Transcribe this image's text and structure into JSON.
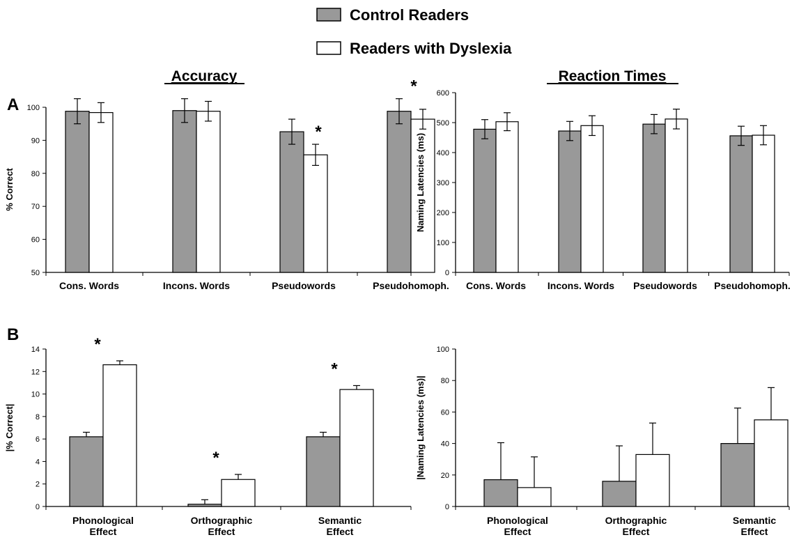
{
  "legend": {
    "items": [
      {
        "label": "Control Readers",
        "color": "#999999"
      },
      {
        "label": "Readers with Dyslexia",
        "color": "#ffffff"
      }
    ]
  },
  "sections": {
    "accuracy_title": "Accuracy",
    "rt_title": "Reaction Times"
  },
  "panel_labels": {
    "a": "A",
    "b": "B"
  },
  "colors": {
    "control": "#999999",
    "dyslexia": "#ffffff",
    "stroke": "#000000"
  },
  "chart_data": [
    {
      "id": "A-accuracy",
      "type": "bar",
      "ylabel": "% Correct",
      "ylim": [
        50,
        100
      ],
      "yticks": [
        50,
        60,
        70,
        80,
        90,
        100
      ],
      "categories": [
        "Cons. Words",
        "Incons. Words",
        "Pseudowords",
        "Pseudohomoph."
      ],
      "series": [
        {
          "name": "Control Readers",
          "values": [
            98.8,
            99.0,
            92.6,
            98.8
          ],
          "errors": [
            3.8,
            3.6,
            3.8,
            3.8
          ]
        },
        {
          "name": "Readers with Dyslexia",
          "values": [
            98.4,
            98.8,
            85.6,
            96.4
          ],
          "errors": [
            3.0,
            3.0,
            3.2,
            3.0
          ]
        }
      ],
      "annotations": [
        {
          "category": 2,
          "series": 1,
          "text": "*"
        },
        {
          "category": 3,
          "series": 0,
          "text": "*"
        }
      ],
      "grid": false
    },
    {
      "id": "A-rt",
      "type": "bar",
      "ylabel": "Naming Latencies (ms)",
      "ylim": [
        0,
        600
      ],
      "yticks": [
        0,
        100,
        200,
        300,
        400,
        500,
        600
      ],
      "categories": [
        "Cons. Words",
        "Incons. Words",
        "Pseudowords",
        "Pseudohomoph."
      ],
      "series": [
        {
          "name": "Control Readers",
          "values": [
            478,
            472,
            495,
            456
          ],
          "errors": [
            32,
            32,
            32,
            32
          ]
        },
        {
          "name": "Readers with Dyslexia",
          "values": [
            503,
            490,
            512,
            458
          ],
          "errors": [
            30,
            33,
            33,
            32
          ]
        }
      ],
      "annotations": [],
      "grid": false
    },
    {
      "id": "B-accuracy",
      "type": "bar",
      "ylabel": "|% Correct|",
      "ylim": [
        0,
        14
      ],
      "yticks": [
        0,
        2,
        4,
        6,
        8,
        10,
        12,
        14
      ],
      "categories": [
        "Phonological\nEffect",
        "Orthographic\nEffect",
        "Semantic\nEffect"
      ],
      "series": [
        {
          "name": "Control Readers",
          "values": [
            6.2,
            0.2,
            6.2
          ],
          "errors": [
            0.4,
            0.4,
            0.4
          ]
        },
        {
          "name": "Readers with Dyslexia",
          "values": [
            12.6,
            2.4,
            10.4
          ],
          "errors": [
            0.35,
            0.45,
            0.35
          ]
        }
      ],
      "annotations": [
        {
          "category": 0,
          "series": 0,
          "text": "*"
        },
        {
          "category": 1,
          "series": 1,
          "text": "*"
        },
        {
          "category": 2,
          "series": 0,
          "text": "*"
        }
      ],
      "grid": false
    },
    {
      "id": "B-rt",
      "type": "bar",
      "ylabel": "|Naming Latencies (ms)|",
      "ylim": [
        0,
        100
      ],
      "yticks": [
        0,
        20,
        40,
        60,
        80,
        100
      ],
      "categories": [
        "Phonological\nEffect",
        "Orthographic\nEffect",
        "Semantic\nEffect"
      ],
      "series": [
        {
          "name": "Control Readers",
          "values": [
            17,
            16,
            40
          ],
          "errors": [
            23.5,
            22.5,
            22.5
          ]
        },
        {
          "name": "Readers with Dyslexia",
          "values": [
            12,
            33,
            55
          ],
          "errors": [
            19.5,
            20,
            20.5
          ]
        }
      ],
      "annotations": [],
      "grid": false
    }
  ]
}
